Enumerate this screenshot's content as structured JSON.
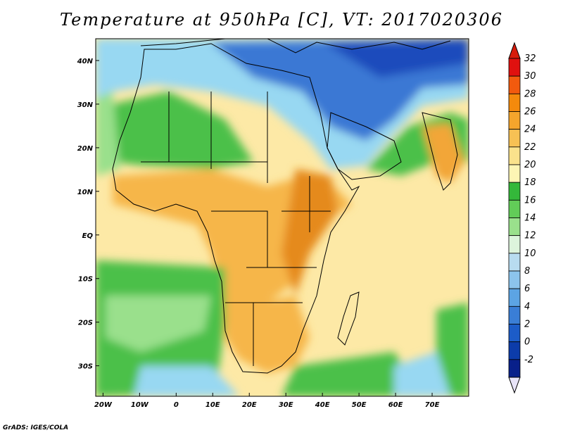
{
  "title": "Temperature at 950hPa [C], VT: 2017020306",
  "credit": "GrADS: IGES/COLA",
  "map": {
    "lon_range": [
      -22,
      80
    ],
    "lat_range": [
      -37,
      45
    ],
    "lon_ticks": [
      {
        "lon": -20,
        "label": "20W"
      },
      {
        "lon": -10,
        "label": "10W"
      },
      {
        "lon": 0,
        "label": "0"
      },
      {
        "lon": 10,
        "label": "10E"
      },
      {
        "lon": 20,
        "label": "20E"
      },
      {
        "lon": 30,
        "label": "30E"
      },
      {
        "lon": 40,
        "label": "40E"
      },
      {
        "lon": 50,
        "label": "50E"
      },
      {
        "lon": 60,
        "label": "60E"
      },
      {
        "lon": 70,
        "label": "70E"
      }
    ],
    "lat_ticks": [
      {
        "lat": 40,
        "label": "40N"
      },
      {
        "lat": 30,
        "label": "30N"
      },
      {
        "lat": 20,
        "label": "20N"
      },
      {
        "lat": 10,
        "label": "10N"
      },
      {
        "lat": 0,
        "label": "EQ"
      },
      {
        "lat": -10,
        "label": "10S"
      },
      {
        "lat": -20,
        "label": "20S"
      },
      {
        "lat": -30,
        "label": "30S"
      }
    ]
  },
  "colorbar": {
    "labels": [
      "32",
      "30",
      "28",
      "26",
      "24",
      "22",
      "20",
      "18",
      "16",
      "14",
      "12",
      "10",
      "8",
      "6",
      "4",
      "2",
      "0",
      "-2"
    ],
    "colors": [
      "#e0110f",
      "#f25a0e",
      "#f48a0c",
      "#f5a52c",
      "#f7c154",
      "#fae28c",
      "#fdf5b4",
      "#34b83a",
      "#62cc58",
      "#9ae08c",
      "#ddf4dc",
      "#b8dcf0",
      "#8cc4ec",
      "#5ca4e4",
      "#3a7ed6",
      "#1c5cc8",
      "#0c3caa",
      "#08208a"
    ],
    "top_color": "#d81c0c",
    "bottom_color": "#e8e4f8"
  },
  "colors": {
    "hot": "#f0a02c",
    "warm": "#fde9a6",
    "green": "#4cc04a",
    "cool": "#98d8f2",
    "cold": "#3a78d4",
    "border": "#000000"
  }
}
